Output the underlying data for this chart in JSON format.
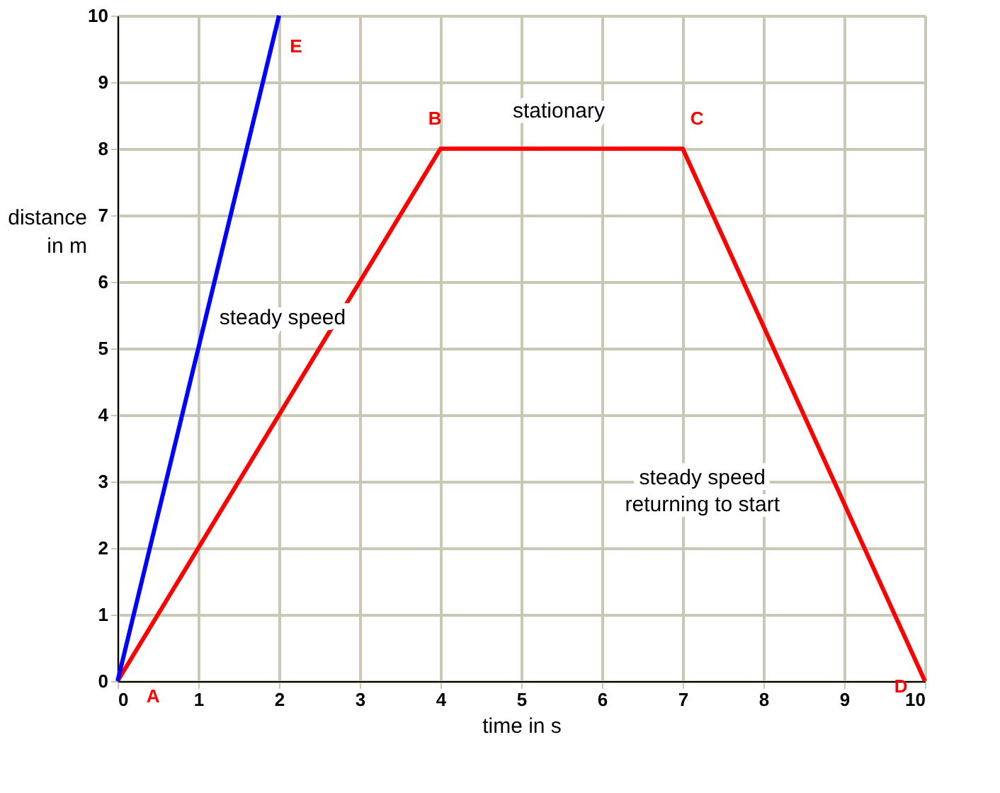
{
  "chart_data": {
    "type": "line",
    "xlabel": "time in s",
    "ylabel": "distance\nin m",
    "series": [
      {
        "color": "#ff0000",
        "x": [
          0,
          4,
          7,
          10
        ],
        "values": [
          0,
          8,
          8,
          0
        ]
      },
      {
        "color": "#0000ff",
        "x": [
          0,
          2
        ],
        "values": [
          0,
          10
        ]
      }
    ],
    "xlim": [
      0,
      10
    ],
    "ylim": [
      0,
      10
    ],
    "xticks": [
      0,
      1,
      2,
      3,
      4,
      5,
      6,
      7,
      8,
      9,
      10
    ],
    "yticks": [
      0,
      1,
      2,
      3,
      4,
      5,
      6,
      7,
      8,
      9,
      10
    ],
    "grid": true,
    "marker": "none",
    "line_style": "solid",
    "annotations": [
      {
        "text": "A",
        "x": 0,
        "y": 0
      },
      {
        "text": "B",
        "x": 4,
        "y": 8
      },
      {
        "text": "C",
        "x": 7,
        "y": 8
      },
      {
        "text": "D",
        "x": 10,
        "y": 0
      },
      {
        "text": "E",
        "x": 2,
        "y": 10
      },
      {
        "text": "stationary",
        "x": 5.5,
        "y": 8
      },
      {
        "text": "steady speed",
        "x": 2.5,
        "y": 5
      },
      {
        "text": "steady speed\nreturning to start",
        "x": 8.875,
        "y": 3
      }
    ]
  }
}
